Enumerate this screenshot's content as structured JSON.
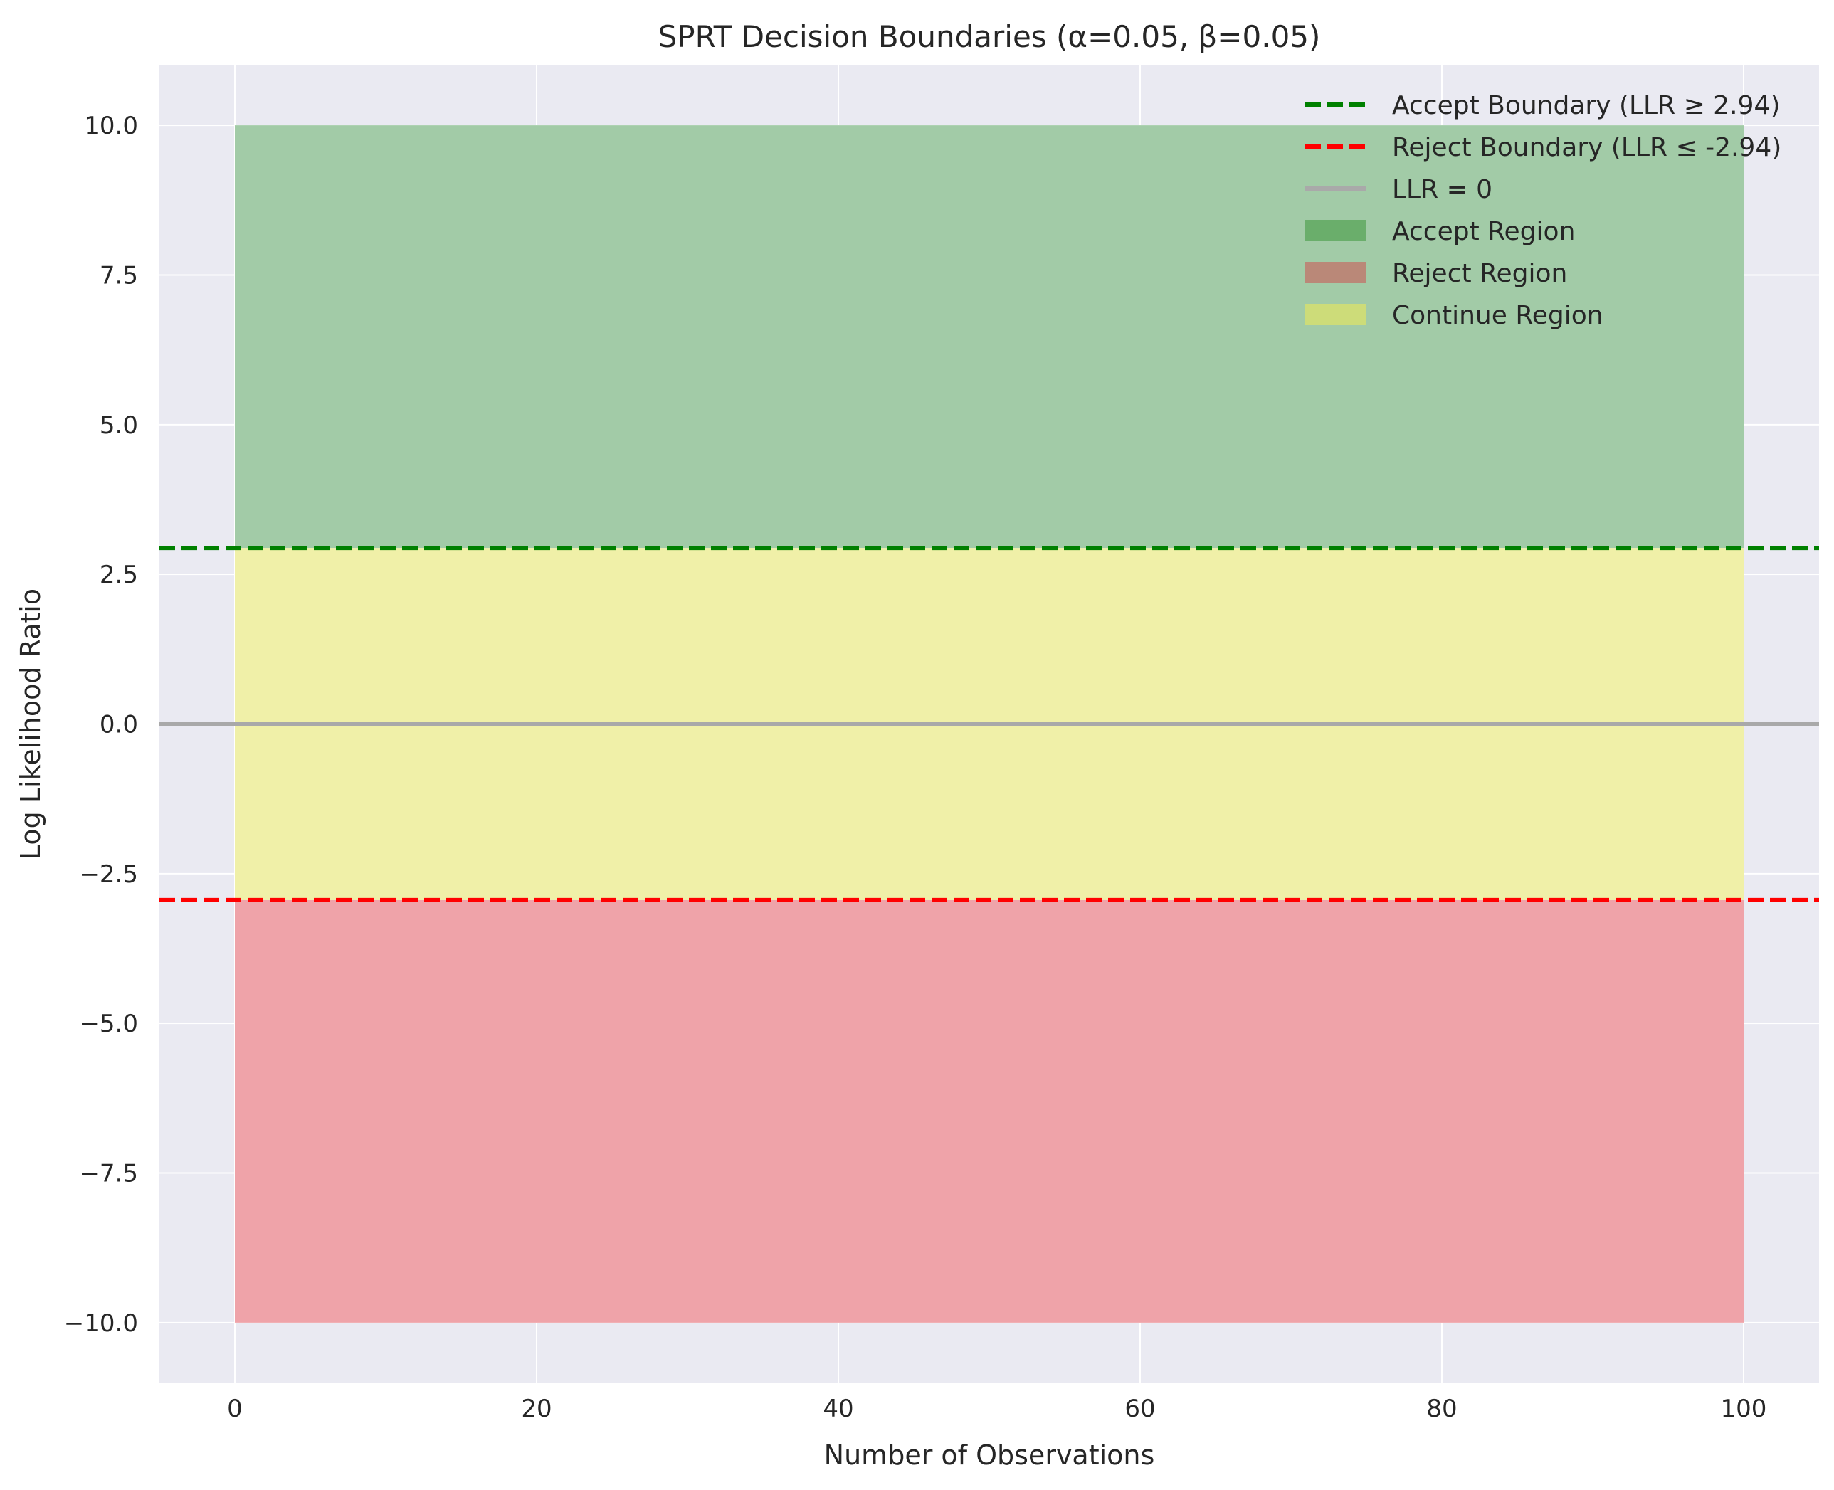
{
  "chart_data": {
    "type": "area",
    "title": "SPRT Decision Boundaries (α=0.05, β=0.05)",
    "xlabel": "Number of Observations",
    "ylabel": "Log Likelihood Ratio",
    "xlim": [
      -5,
      105
    ],
    "ylim": [
      -11,
      11
    ],
    "xticks": [
      0,
      20,
      40,
      60,
      80,
      100
    ],
    "yticks": [
      -10.0,
      -7.5,
      -5.0,
      -2.5,
      0.0,
      2.5,
      5.0,
      7.5,
      10.0
    ],
    "xtick_labels": [
      "0",
      "20",
      "40",
      "60",
      "80",
      "100"
    ],
    "ytick_labels": [
      "−10.0",
      "−7.5",
      "−5.0",
      "−2.5",
      "0.0",
      "2.5",
      "5.0",
      "7.5",
      "10.0"
    ],
    "grid": true,
    "legend_position": "top-right",
    "lines": [
      {
        "name": "Accept Boundary (LLR ≥ 2.94)",
        "y": 2.94,
        "style": "dashed",
        "color": "#008000"
      },
      {
        "name": "Reject Boundary (LLR ≤ -2.94)",
        "y": -2.94,
        "style": "dashed",
        "color": "#ff0000"
      },
      {
        "name": "LLR = 0",
        "y": 0,
        "style": "solid",
        "color": "#a9a9a9"
      }
    ],
    "regions": [
      {
        "name": "Accept Region",
        "x": [
          0,
          100
        ],
        "y": [
          2.94,
          10
        ],
        "color": "#5aa55a"
      },
      {
        "name": "Reject Region",
        "x": [
          0,
          100
        ],
        "y": [
          -10,
          -2.94
        ],
        "color": "#c0746a"
      },
      {
        "name": "Continue Region",
        "x": [
          0,
          100
        ],
        "y": [
          -2.94,
          2.94
        ],
        "color": "#d8e06c"
      }
    ],
    "region_fill_colors": {
      "accept": "#a2cba7",
      "continue": "#f0f0a8",
      "reject": "#efa3a9"
    },
    "background_color": "#eaeaf2"
  }
}
